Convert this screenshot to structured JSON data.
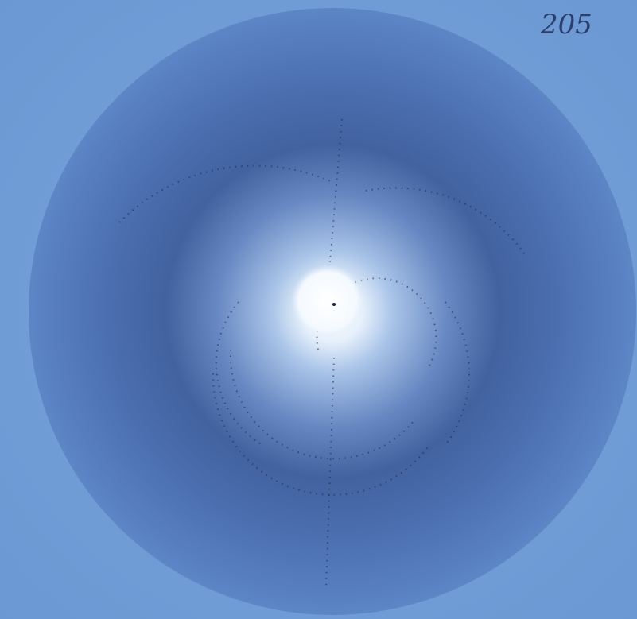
{
  "annotation": "205"
}
